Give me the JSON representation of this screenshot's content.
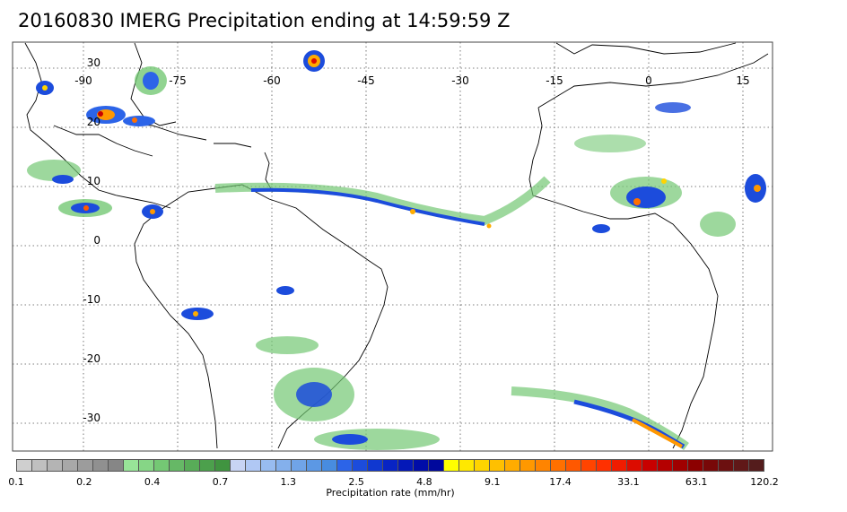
{
  "title": "20160830 IMERG Precipitation ending at 14:59:59 Z",
  "map": {
    "lon_labels": [
      "-90",
      "-75",
      "-60",
      "-45",
      "-30",
      "-15",
      "0",
      "15"
    ],
    "lat_labels": [
      "30",
      "20",
      "10",
      "0",
      "-10",
      "-20",
      "-30"
    ],
    "grid": true,
    "grid_style": "dotted"
  },
  "colorbar": {
    "title": "Precipitation rate (mm/hr)",
    "tick_labels": [
      "0.1",
      "0.2",
      "0.4",
      "0.7",
      "1.3",
      "2.5",
      "4.8",
      "9.1",
      "17.4",
      "33.1",
      "63.1",
      "120.2"
    ],
    "colors": [
      "#cfcfcf",
      "#c0c0c0",
      "#b4b4b4",
      "#a8a8a8",
      "#9c9c9c",
      "#909090",
      "#868686",
      "#98e498",
      "#86d686",
      "#74c874",
      "#66b866",
      "#58ac58",
      "#4ca04c",
      "#409440",
      "#c8d4f4",
      "#b0c8f4",
      "#98bcf0",
      "#84b0ec",
      "#70a4e8",
      "#5c98e4",
      "#488ce0",
      "#2c64e8",
      "#1c4cdc",
      "#1038d0",
      "#0824c4",
      "#0418b8",
      "#000ca8",
      "#00089c",
      "#ffff00",
      "#ffe800",
      "#ffd400",
      "#ffc000",
      "#ffac00",
      "#ff9800",
      "#ff8400",
      "#ff7000",
      "#ff5800",
      "#ff4400",
      "#ff3000",
      "#f01c00",
      "#dc0c00",
      "#c80000",
      "#b40000",
      "#a00000",
      "#8c0000",
      "#780808",
      "#6c1010",
      "#601818",
      "#541c1c"
    ]
  }
}
